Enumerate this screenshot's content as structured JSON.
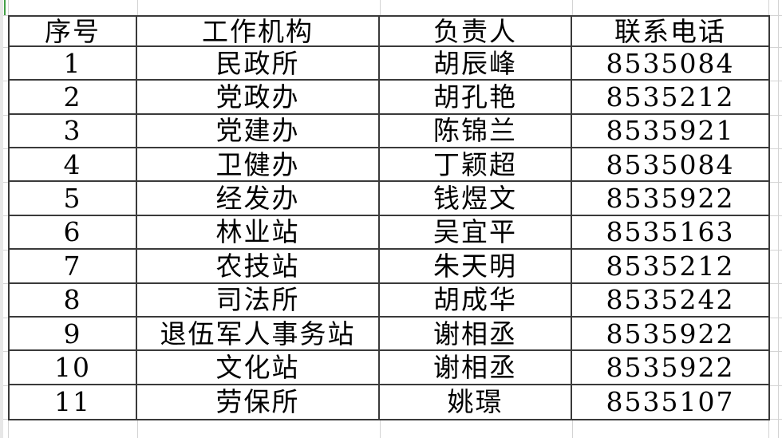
{
  "app": {
    "kind": "spreadsheet-grid"
  },
  "colors": {
    "table_border": "#3a3a3a",
    "gridline": "#d4d4d4",
    "selection_green": "#43a047",
    "text": "#000000",
    "background": "#ffffff"
  },
  "table": {
    "headers": [
      "序号",
      "工作机构",
      "负责人",
      "联系电话"
    ],
    "rows": [
      [
        "1",
        "民政所",
        "胡辰峰",
        "8535084"
      ],
      [
        "2",
        "党政办",
        "胡孔艳",
        "8535212"
      ],
      [
        "3",
        "党建办",
        "陈锦兰",
        "8535921"
      ],
      [
        "4",
        "卫健办",
        "丁颖超",
        "8535084"
      ],
      [
        "5",
        "经发办",
        "钱煜文",
        "8535922"
      ],
      [
        "6",
        "林业站",
        "吴宜平",
        "8535163"
      ],
      [
        "7",
        "农技站",
        "朱天明",
        "8535212"
      ],
      [
        "8",
        "司法所",
        "胡成华",
        "8535242"
      ],
      [
        "9",
        "退伍军人事务站",
        "谢相丞",
        "8535922"
      ],
      [
        "10",
        "文化站",
        "谢相丞",
        "8535922"
      ],
      [
        "11",
        "劳保所",
        "姚璟",
        "8535107"
      ]
    ]
  }
}
